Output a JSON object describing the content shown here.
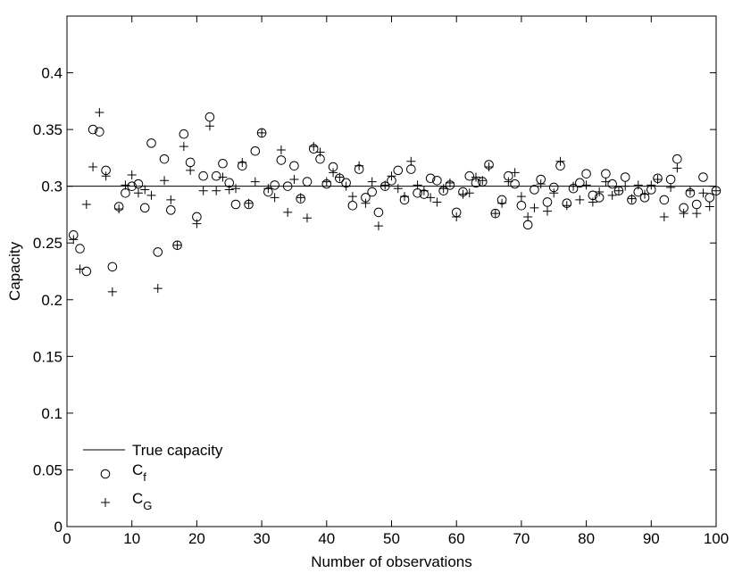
{
  "chart_data": {
    "type": "scatter",
    "title": "",
    "xlabel": "Number of observations",
    "ylabel": "Capacity",
    "xlim": [
      0,
      100
    ],
    "ylim": [
      0,
      0.45
    ],
    "x_ticks": [
      0,
      10,
      20,
      30,
      40,
      50,
      60,
      70,
      80,
      90,
      100
    ],
    "x_tick_labels": [
      "0",
      "10",
      "20",
      "30",
      "40",
      "50",
      "60",
      "70",
      "80",
      "90",
      "100"
    ],
    "y_ticks": [
      0,
      0.05,
      0.1,
      0.15,
      0.2,
      0.25,
      0.3,
      0.35,
      0.4
    ],
    "y_tick_labels": [
      "0",
      "0.05",
      "0.1",
      "0.15",
      "0.2",
      "0.25",
      "0.3",
      "0.35",
      "0.4"
    ],
    "grid": false,
    "legend_position": "bottom-left",
    "reference_line": {
      "name": "True capacity",
      "y": 0.3
    },
    "series": [
      {
        "name": "C_f",
        "name_main": "C",
        "name_sub": "f",
        "marker": "circle",
        "x": [
          1,
          2,
          3,
          4,
          5,
          6,
          7,
          8,
          9,
          10,
          11,
          12,
          13,
          14,
          15,
          16,
          17,
          18,
          19,
          20,
          21,
          22,
          23,
          24,
          25,
          26,
          27,
          28,
          29,
          30,
          31,
          32,
          33,
          34,
          35,
          36,
          37,
          38,
          39,
          40,
          41,
          42,
          43,
          44,
          45,
          46,
          47,
          48,
          49,
          50,
          51,
          52,
          53,
          54,
          55,
          56,
          57,
          58,
          59,
          60,
          61,
          62,
          63,
          64,
          65,
          66,
          67,
          68,
          69,
          70,
          71,
          72,
          73,
          74,
          75,
          76,
          77,
          78,
          79,
          80,
          81,
          82,
          83,
          84,
          85,
          86,
          87,
          88,
          89,
          90,
          91,
          92,
          93,
          94,
          95,
          96,
          97,
          98,
          99,
          100
        ],
        "values": [
          0.257,
          0.245,
          0.225,
          0.35,
          0.348,
          0.314,
          0.229,
          0.282,
          0.294,
          0.3,
          0.302,
          0.281,
          0.338,
          0.242,
          0.324,
          0.279,
          0.248,
          0.346,
          0.321,
          0.273,
          0.309,
          0.361,
          0.309,
          0.32,
          0.303,
          0.284,
          0.318,
          0.284,
          0.331,
          0.347,
          0.295,
          0.301,
          0.323,
          0.3,
          0.318,
          0.289,
          0.304,
          0.333,
          0.324,
          0.302,
          0.317,
          0.307,
          0.303,
          0.283,
          0.315,
          0.29,
          0.295,
          0.277,
          0.3,
          0.305,
          0.314,
          0.288,
          0.315,
          0.294,
          0.293,
          0.307,
          0.305,
          0.296,
          0.301,
          0.277,
          0.295,
          0.309,
          0.303,
          0.304,
          0.319,
          0.276,
          0.288,
          0.309,
          0.302,
          0.283,
          0.266,
          0.297,
          0.306,
          0.286,
          0.299,
          0.318,
          0.285,
          0.298,
          0.303,
          0.311,
          0.292,
          0.29,
          0.311,
          0.302,
          0.296,
          0.308,
          0.288,
          0.295,
          0.29,
          0.297,
          0.307,
          0.288,
          0.306,
          0.324,
          0.281,
          0.294,
          0.284,
          0.308,
          0.29,
          0.296
        ]
      },
      {
        "name": "C_G",
        "name_main": "C",
        "name_sub": "G",
        "marker": "plus",
        "x": [
          1,
          2,
          3,
          4,
          5,
          6,
          7,
          8,
          9,
          10,
          11,
          12,
          13,
          14,
          15,
          16,
          17,
          18,
          19,
          20,
          21,
          22,
          23,
          24,
          25,
          26,
          27,
          28,
          29,
          30,
          31,
          32,
          33,
          34,
          35,
          36,
          37,
          38,
          39,
          40,
          41,
          42,
          43,
          44,
          45,
          46,
          47,
          48,
          49,
          50,
          51,
          52,
          53,
          54,
          55,
          56,
          57,
          58,
          59,
          60,
          61,
          62,
          63,
          64,
          65,
          66,
          67,
          68,
          69,
          70,
          71,
          72,
          73,
          74,
          75,
          76,
          77,
          78,
          79,
          80,
          81,
          82,
          83,
          84,
          85,
          86,
          87,
          88,
          89,
          90,
          91,
          92,
          93,
          94,
          95,
          96,
          97,
          98,
          99,
          100
        ],
        "values": [
          0.253,
          0.227,
          0.284,
          0.317,
          0.365,
          0.309,
          0.207,
          0.28,
          0.301,
          0.31,
          0.294,
          0.297,
          0.292,
          0.21,
          0.305,
          0.288,
          0.248,
          0.335,
          0.314,
          0.267,
          0.296,
          0.353,
          0.296,
          0.308,
          0.297,
          0.298,
          0.321,
          0.285,
          0.304,
          0.347,
          0.298,
          0.29,
          0.332,
          0.277,
          0.306,
          0.29,
          0.272,
          0.335,
          0.33,
          0.304,
          0.312,
          0.308,
          0.3,
          0.291,
          0.318,
          0.285,
          0.304,
          0.265,
          0.301,
          0.309,
          0.298,
          0.291,
          0.322,
          0.301,
          0.296,
          0.29,
          0.286,
          0.298,
          0.303,
          0.273,
          0.293,
          0.294,
          0.308,
          0.305,
          0.317,
          0.276,
          0.285,
          0.304,
          0.312,
          0.291,
          0.273,
          0.281,
          0.302,
          0.278,
          0.294,
          0.322,
          0.283,
          0.3,
          0.288,
          0.301,
          0.286,
          0.295,
          0.304,
          0.292,
          0.296,
          0.3,
          0.289,
          0.301,
          0.293,
          0.301,
          0.306,
          0.273,
          0.299,
          0.316,
          0.276,
          0.296,
          0.276,
          0.294,
          0.282,
          0.296
        ]
      }
    ]
  }
}
